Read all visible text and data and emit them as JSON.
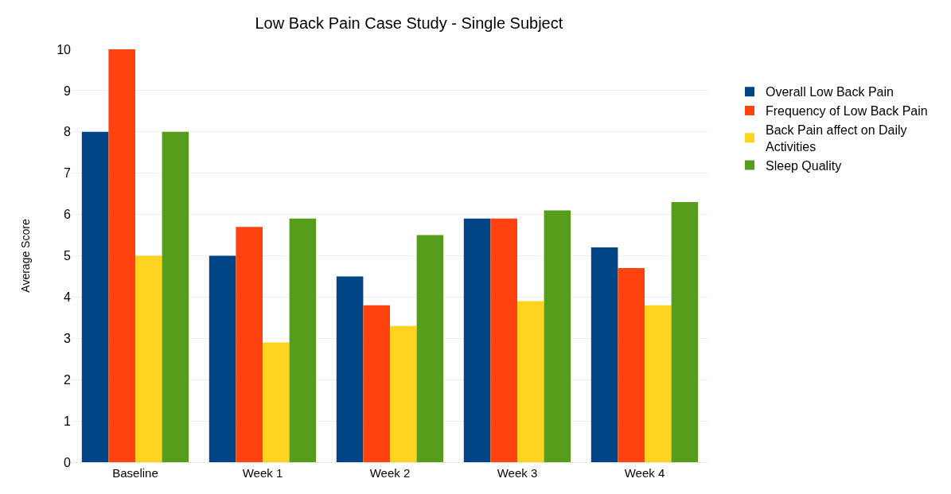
{
  "chart_data": {
    "type": "bar",
    "title": "Low Back Pain Case Study - Single Subject",
    "ylabel": "Average Score",
    "categories": [
      "Baseline",
      "Week 1",
      "Week 2",
      "Week 3",
      "Week 4"
    ],
    "series": [
      {
        "name": "Overall Low Back Pain",
        "color": "#004586",
        "values": [
          8,
          5,
          4.5,
          5.9,
          5.2
        ]
      },
      {
        "name": "Frequency of Low Back Pain",
        "color": "#ff420e",
        "values": [
          10,
          5.7,
          3.8,
          5.9,
          4.7
        ]
      },
      {
        "name": "Back Pain affect on Daily Activities",
        "color": "#ffd320",
        "values": [
          5,
          2.9,
          3.3,
          3.9,
          3.8
        ]
      },
      {
        "name": "Sleep Quality",
        "color": "#579d1c",
        "values": [
          8,
          5.9,
          5.5,
          6.1,
          6.3
        ]
      }
    ],
    "ylim": [
      0,
      10
    ],
    "yticks": [
      0,
      1,
      2,
      3,
      4,
      5,
      6,
      7,
      8,
      9,
      10
    ],
    "grid": "y",
    "legend": "top right"
  }
}
